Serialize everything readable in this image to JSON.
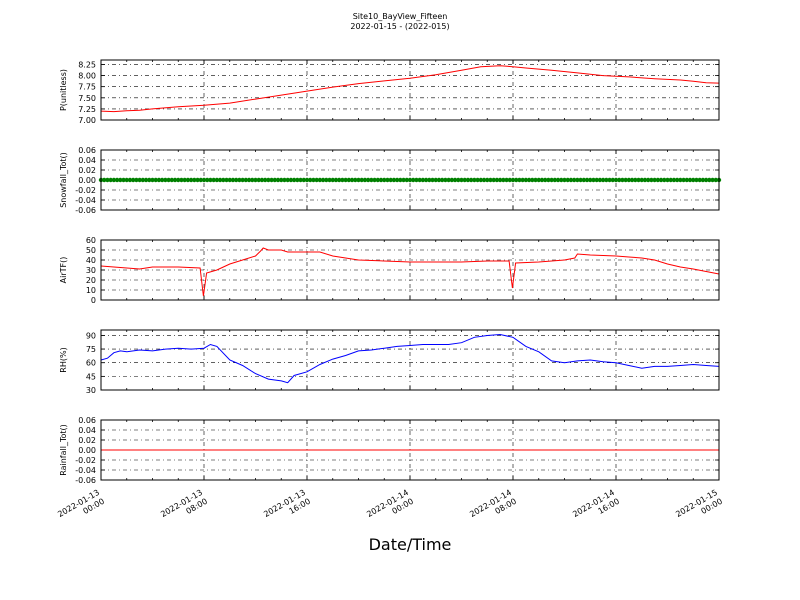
{
  "header": {
    "title": "Site10_BayView_Fifteen",
    "subtitle": "2022-01-15 - (2022-015)"
  },
  "x_axis": {
    "label": "Date/Time",
    "ticks": [
      {
        "hours": 0,
        "line1": "2022-01-13",
        "line2": "00:00"
      },
      {
        "hours": 8,
        "line1": "2022-01-13",
        "line2": "08:00"
      },
      {
        "hours": 16,
        "line1": "2022-01-13",
        "line2": "16:00"
      },
      {
        "hours": 24,
        "line1": "2022-01-14",
        "line2": "00:00"
      },
      {
        "hours": 32,
        "line1": "2022-01-14",
        "line2": "08:00"
      },
      {
        "hours": 40,
        "line1": "2022-01-14",
        "line2": "16:00"
      },
      {
        "hours": 48,
        "line1": "2022-01-15",
        "line2": "00:00"
      }
    ],
    "range_hours": [
      0,
      48
    ]
  },
  "chart_data": [
    {
      "type": "line",
      "ylabel": "P(unitless)",
      "ylim": [
        7.0,
        8.35
      ],
      "yticks": [
        "7.00",
        "7.25",
        "7.50",
        "7.75",
        "8.00",
        "8.25"
      ],
      "ytick_values": [
        7.0,
        7.25,
        7.5,
        7.75,
        8.0,
        8.25
      ],
      "grid": true,
      "color": "#ff0000",
      "x": [
        0,
        1,
        2,
        3,
        4,
        6,
        8,
        10,
        12,
        14,
        16,
        18,
        20,
        22,
        24,
        26,
        28,
        29.5,
        31,
        32,
        33,
        35,
        37,
        39,
        41,
        43,
        45,
        46,
        47,
        48
      ],
      "y": [
        7.2,
        7.19,
        7.21,
        7.22,
        7.25,
        7.3,
        7.33,
        7.38,
        7.47,
        7.56,
        7.65,
        7.74,
        7.82,
        7.88,
        7.94,
        8.02,
        8.12,
        8.2,
        8.22,
        8.2,
        8.17,
        8.12,
        8.06,
        8.0,
        7.97,
        7.93,
        7.9,
        7.87,
        7.84,
        7.83
      ]
    },
    {
      "type": "scatter",
      "ylabel": "Snowfall_Tot()",
      "ylim": [
        -0.06,
        0.06
      ],
      "yticks": [
        "-0.06",
        "-0.04",
        "-0.02",
        "0.00",
        "0.02",
        "0.04",
        "0.06"
      ],
      "ytick_values": [
        -0.06,
        -0.04,
        -0.02,
        0.0,
        0.02,
        0.04,
        0.06
      ],
      "grid": true,
      "color": "#008000",
      "constant_value": 0.0,
      "x_step_hours": 0.25
    },
    {
      "type": "line",
      "ylabel": "AirTF()",
      "ylim": [
        0,
        60
      ],
      "yticks": [
        "0",
        "10",
        "20",
        "30",
        "40",
        "50",
        "60"
      ],
      "ytick_values": [
        0,
        10,
        20,
        30,
        40,
        50,
        60
      ],
      "grid": true,
      "color": "#ff0000",
      "x": [
        0,
        2,
        3,
        4,
        6,
        7.7,
        7.95,
        8.2,
        9,
        10,
        11,
        12,
        12.4,
        12.6,
        13,
        14,
        14.5,
        16,
        17,
        18,
        19,
        20,
        22,
        24,
        26,
        28,
        30,
        31.7,
        31.95,
        32.2,
        34,
        36,
        36.8,
        37,
        38,
        40,
        41,
        42,
        43,
        44,
        45,
        46,
        48
      ],
      "y": [
        34,
        32,
        31,
        33,
        33,
        32,
        4,
        27,
        30,
        36,
        40,
        44,
        49,
        52,
        50,
        50,
        48,
        48,
        48,
        44,
        42,
        40,
        39,
        38,
        38,
        38,
        39,
        39,
        12,
        37,
        38,
        40,
        42,
        46,
        45,
        44,
        43,
        42,
        40,
        36,
        33,
        31,
        26
      ]
    },
    {
      "type": "line",
      "ylabel": "RH(%)",
      "ylim": [
        30,
        96
      ],
      "yticks": [
        "30",
        "45",
        "60",
        "75",
        "90"
      ],
      "ytick_values": [
        30,
        45,
        60,
        75,
        90
      ],
      "grid": true,
      "color": "#0000ff",
      "x": [
        0,
        0.5,
        1,
        1.5,
        2,
        3,
        4,
        5,
        6,
        7,
        8,
        8.5,
        9,
        10,
        11,
        12,
        13,
        14,
        14.5,
        15,
        16,
        17,
        18,
        19,
        20,
        21,
        22,
        23,
        24,
        25,
        26,
        27,
        28,
        29,
        30,
        31,
        32,
        33,
        34,
        35,
        36,
        37,
        38,
        39,
        40,
        41,
        42,
        43,
        44,
        45,
        46,
        47,
        48
      ],
      "y": [
        63,
        65,
        71,
        73,
        72,
        74,
        73,
        75,
        76,
        75,
        76,
        80,
        78,
        63,
        57,
        48,
        42,
        40,
        38,
        46,
        50,
        58,
        64,
        68,
        73,
        74,
        76,
        78,
        79,
        80,
        80,
        80,
        82,
        88,
        90,
        91,
        88,
        78,
        72,
        62,
        60,
        62,
        63,
        61,
        60,
        57,
        54,
        56,
        56,
        57,
        58,
        57,
        56
      ]
    },
    {
      "type": "line",
      "ylabel": "Rainfall_Tot()",
      "ylim": [
        -0.06,
        0.06
      ],
      "yticks": [
        "-0.06",
        "-0.04",
        "-0.02",
        "0.00",
        "0.02",
        "0.04",
        "0.06"
      ],
      "ytick_values": [
        -0.06,
        -0.04,
        -0.02,
        0.0,
        0.02,
        0.04,
        0.06
      ],
      "grid": true,
      "color": "#ff0000",
      "x": [
        0,
        48
      ],
      "y": [
        0,
        0
      ]
    }
  ]
}
